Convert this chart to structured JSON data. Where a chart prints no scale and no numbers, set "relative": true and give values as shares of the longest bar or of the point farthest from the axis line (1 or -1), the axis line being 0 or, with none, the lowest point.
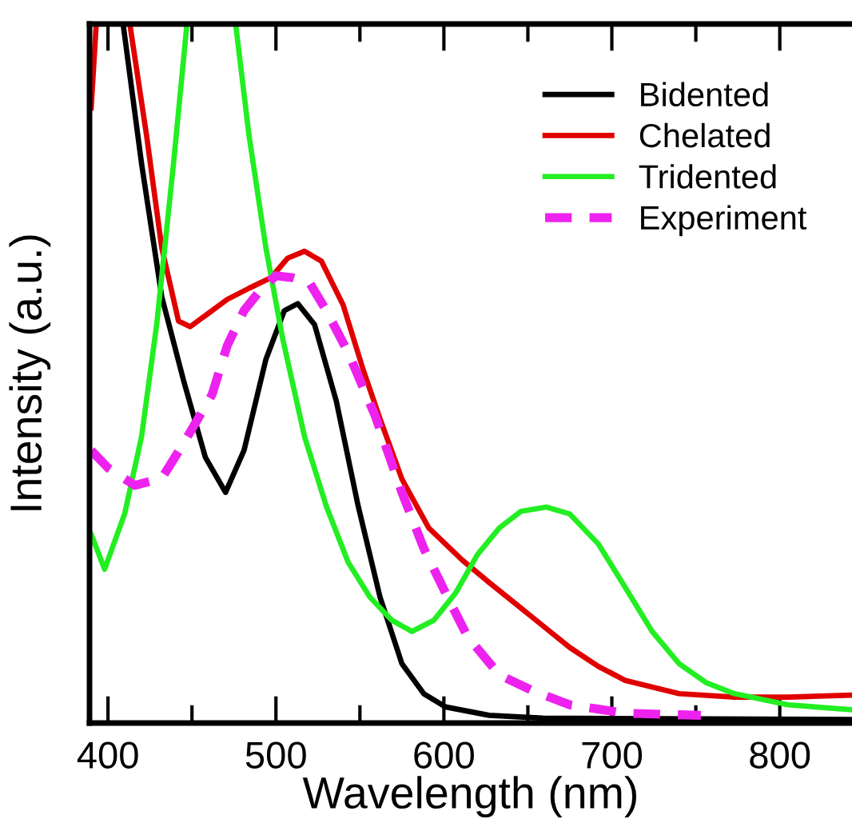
{
  "chart_data": {
    "type": "line",
    "relative": true,
    "xlabel": "Wavelength (nm)",
    "ylabel": "Intensity (a.u.)",
    "xlim": [
      389,
      843
    ],
    "xticks": [
      400,
      {
        "value": 450,
        "label": null
      },
      500,
      {
        "value": 550,
        "label": null
      },
      600,
      {
        "value": 650,
        "label": null
      },
      700,
      {
        "value": 750,
        "label": null
      },
      800
    ],
    "legend": "top right",
    "grid": false,
    "marker": "none",
    "series": [
      {
        "name": "Bidented",
        "color": "#000000",
        "line_style": "solid",
        "x": [
          409,
          420,
          432,
          445,
          458,
          470,
          481,
          494,
          505,
          513,
          523,
          536,
          549,
          562,
          575,
          588,
          601,
          627,
          659,
          843
        ],
        "values": [
          1.0,
          0.8,
          0.61,
          0.49,
          0.38,
          0.33,
          0.39,
          0.52,
          0.59,
          0.6,
          0.57,
          0.46,
          0.31,
          0.18,
          0.085,
          0.042,
          0.023,
          0.011,
          0.007,
          0.005
        ]
      },
      {
        "name": "Chelated",
        "color": "#e00000",
        "line_style": "solid",
        "x": [
          390,
          393,
          403,
          413,
          423,
          432,
          442,
          449,
          458,
          471,
          484,
          497,
          507,
          517,
          527,
          540,
          552,
          562,
          575,
          591,
          611,
          627,
          643,
          659,
          675,
          692,
          708,
          740,
          773,
          805,
          843
        ],
        "values": [
          0.88,
          1.0,
          null,
          1.0,
          0.84,
          0.68,
          0.575,
          0.567,
          0.583,
          0.606,
          0.622,
          0.637,
          0.665,
          0.675,
          0.661,
          0.598,
          0.505,
          0.435,
          0.349,
          0.279,
          0.233,
          0.201,
          0.17,
          0.139,
          0.108,
          0.081,
          0.061,
          0.042,
          0.037,
          0.037,
          0.04
        ]
      },
      {
        "name": "Tridented",
        "color": "#22ee22",
        "line_style": "solid",
        "x": [
          390,
          398,
          410,
          420,
          429,
          439,
          447,
          460,
          476,
          484,
          494,
          504,
          517,
          530,
          543,
          556,
          569,
          581,
          594,
          607,
          620,
          633,
          646,
          661,
          675,
          692,
          708,
          724,
          740,
          756,
          773,
          805,
          843
        ],
        "values": [
          0.27,
          0.22,
          0.3,
          0.41,
          0.57,
          0.8,
          1.0,
          null,
          1.0,
          0.84,
          0.68,
          0.55,
          0.41,
          0.31,
          0.23,
          0.18,
          0.147,
          0.131,
          0.147,
          0.186,
          0.241,
          0.279,
          0.303,
          0.309,
          0.299,
          0.256,
          0.194,
          0.131,
          0.085,
          0.058,
          0.042,
          0.026,
          0.019
        ]
      },
      {
        "name": "Experiment",
        "color": "#ee22ee",
        "line_style": "dashed",
        "x": [
          390,
          400,
          416,
          432,
          445,
          462,
          471,
          481,
          491,
          500,
          510,
          520,
          530,
          543,
          559,
          575,
          588,
          601,
          614,
          633,
          653,
          675,
          708,
          753
        ],
        "values": [
          0.39,
          0.365,
          0.34,
          0.35,
          0.4,
          0.47,
          0.54,
          0.59,
          0.62,
          0.64,
          0.637,
          0.63,
          0.59,
          0.53,
          0.44,
          0.33,
          0.25,
          0.186,
          0.124,
          0.069,
          0.046,
          0.026,
          0.014,
          0.011
        ]
      }
    ]
  }
}
